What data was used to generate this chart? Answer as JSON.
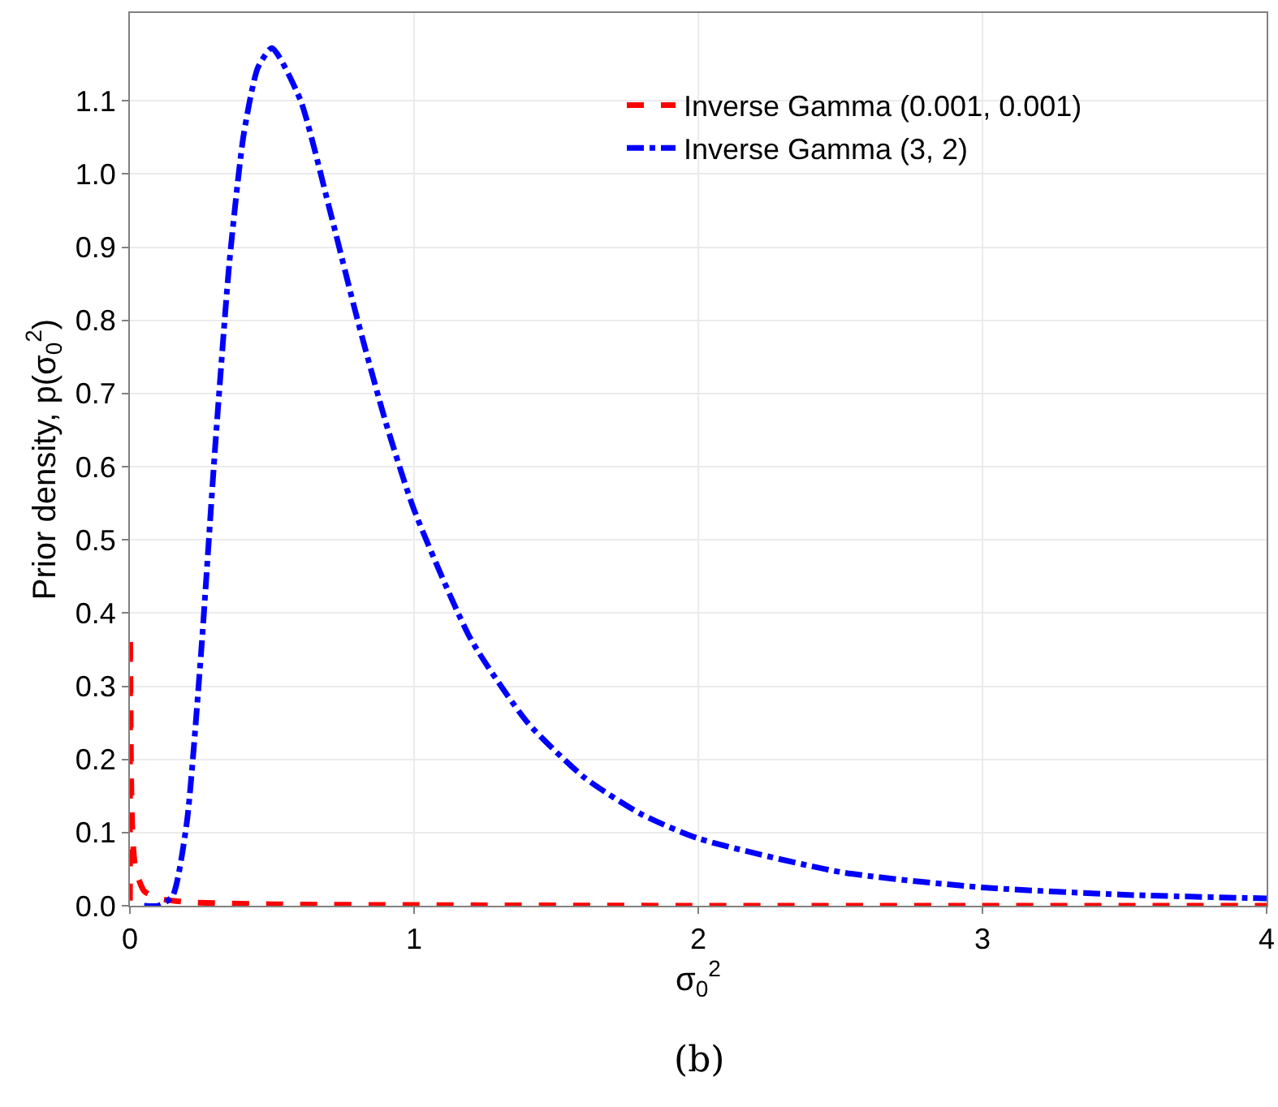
{
  "chart_data": {
    "type": "line",
    "xlabel": "σ$_{0}$$^{2}$",
    "ylabel": "Prior density, p(σ$_{0}$$^{2}$)",
    "xlim": [
      0,
      4
    ],
    "ylim": [
      0,
      1.22
    ],
    "xticks": [
      0,
      1,
      2,
      3,
      4
    ],
    "yticks": [
      {
        "value": 0,
        "label": "0.0"
      },
      0.1,
      0.2,
      0.3,
      0.4,
      0.5,
      0.6,
      0.7,
      0.8,
      0.9,
      {
        "value": 1,
        "label": "1.0"
      },
      1.1
    ],
    "grid": true,
    "legend": "top right",
    "marker": "none",
    "series": [
      {
        "name": "Inverse Gamma (0.001, 0.001)",
        "color": "#ff0000",
        "line_style": "dashed",
        "x": [
          0.0002,
          0.0005,
          0.001,
          0.0015,
          0.002,
          0.003,
          0.005,
          0.01,
          0.02,
          0.05,
          0.1,
          0.2,
          0.5,
          1,
          2,
          3,
          4
        ],
        "values": [
          0.007,
          0.135,
          0.37,
          0.34,
          0.3,
          0.24,
          0.16,
          0.09,
          0.05,
          0.02,
          0.01,
          0.005,
          0.002,
          0.001,
          0,
          0,
          0
        ]
      },
      {
        "name": "Inverse Gamma (3, 2)",
        "color": "#0000ff",
        "line_style": "dashdot",
        "x": [
          0.05,
          0.1,
          0.15,
          0.2,
          0.25,
          0.3,
          0.35,
          0.4,
          0.45,
          0.5,
          0.6,
          0.7,
          0.8,
          0.9,
          1.0,
          1.2,
          1.4,
          1.6,
          1.8,
          2.0,
          2.5,
          3.0,
          3.5,
          4.0
        ],
        "values": [
          0,
          0,
          0.013,
          0.113,
          0.343,
          0.627,
          0.879,
          1.053,
          1.145,
          1.172,
          1.101,
          0.956,
          0.802,
          0.661,
          0.541,
          0.364,
          0.25,
          0.175,
          0.125,
          0.092,
          0.046,
          0.025,
          0.015,
          0.01
        ]
      }
    ],
    "annotations": [
      "(b)"
    ]
  }
}
